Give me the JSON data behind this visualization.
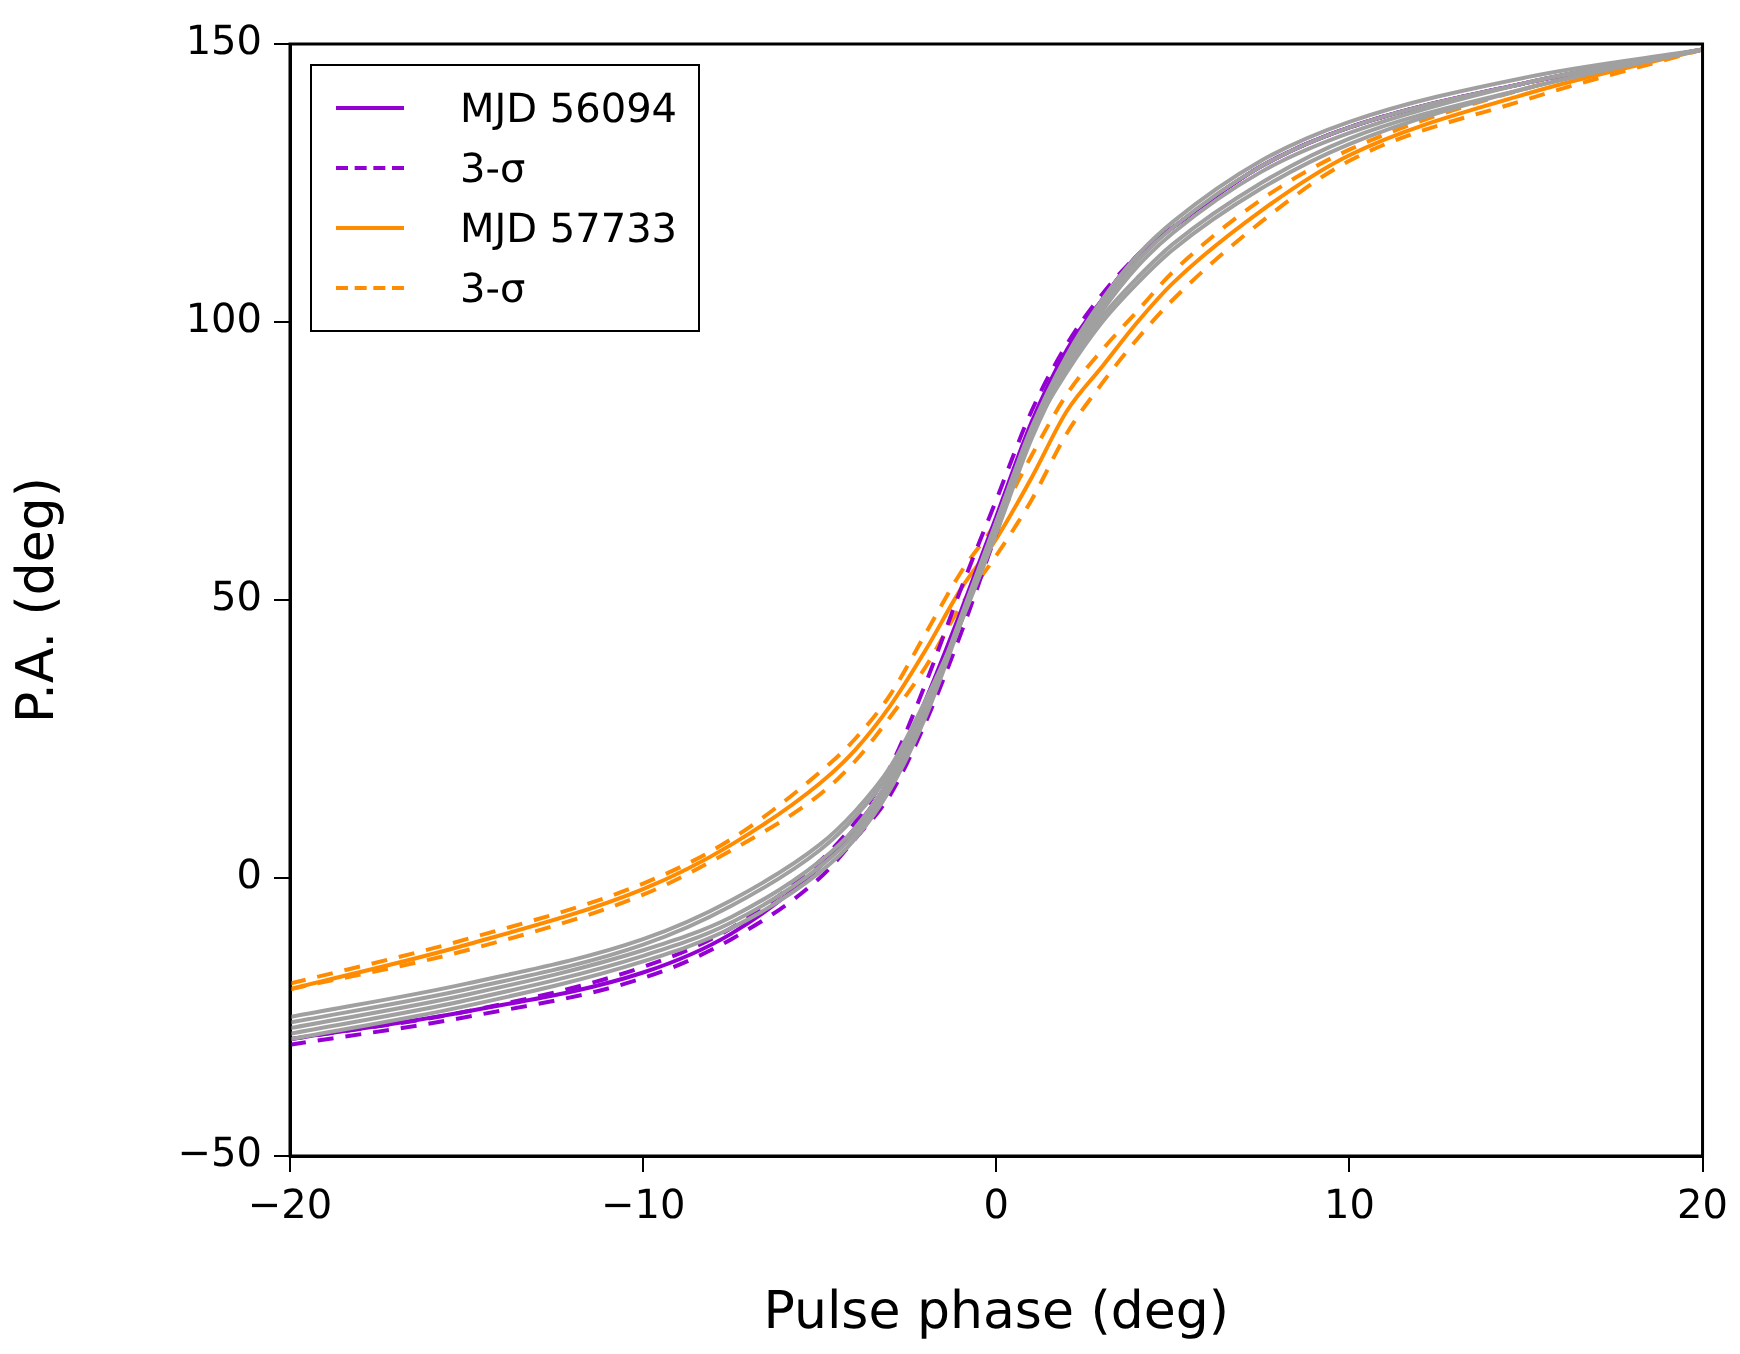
{
  "chart_data": {
    "type": "line",
    "xlabel": "Pulse phase (deg)",
    "ylabel": "P.A. (deg)",
    "x": [
      -20,
      -15,
      -10,
      -7.5,
      -5,
      -4,
      -3,
      -2,
      -1,
      0,
      1,
      2,
      3,
      4,
      5,
      7.5,
      10,
      15,
      20
    ],
    "xlim": [
      -20,
      20
    ],
    "xticks": [
      {
        "value": -20,
        "label": "−20"
      },
      {
        "value": -10,
        "label": "−10"
      },
      0,
      10,
      20
    ],
    "ylim": [
      -50,
      150
    ],
    "yticks": [
      {
        "value": -50,
        "label": "−50"
      },
      0,
      50,
      100,
      150
    ],
    "grid": false,
    "legend": "top left",
    "marker": "none",
    "series": [
      {
        "color": "#a0a0a0",
        "line_style": "solid",
        "values": [
          -25,
          -19,
          -11,
          -4,
          6,
          12,
          20,
          32,
          46,
          62,
          79,
          92,
          102,
          110,
          116,
          127,
          134,
          143,
          149
        ]
      },
      {
        "color": "#a0a0a0",
        "line_style": "solid",
        "values": [
          -26,
          -20,
          -12,
          -5,
          5,
          11,
          19,
          31,
          46,
          63,
          80,
          93,
          103,
          111,
          117,
          128,
          135,
          143,
          149
        ]
      },
      {
        "color": "#a0a0a0",
        "line_style": "solid",
        "values": [
          -27,
          -21,
          -13,
          -7,
          3,
          9,
          18,
          30,
          46,
          63,
          80,
          92,
          101,
          108,
          114,
          125,
          133,
          142,
          149
        ]
      },
      {
        "color": "#a0a0a0",
        "line_style": "solid",
        "values": [
          -28,
          -22,
          -14,
          -8,
          2,
          8,
          17,
          30,
          47,
          64,
          80,
          91,
          100,
          107,
          113,
          124,
          132,
          142,
          149
        ]
      },
      {
        "color": "#a0a0a0",
        "line_style": "solid",
        "values": [
          -29,
          -23,
          -15,
          -9,
          1,
          7,
          16,
          29,
          46,
          64,
          81,
          94,
          104,
          112,
          118,
          129,
          136,
          144,
          149
        ]
      },
      {
        "name": "MJD 56094",
        "color": "#9400d3",
        "line_style": "solid",
        "values": [
          -29,
          -24,
          -17,
          -10,
          2,
          9,
          18,
          32,
          48,
          65,
          82,
          95,
          104,
          112,
          117,
          128,
          135,
          143,
          149
        ]
      },
      {
        "name": "3-σ",
        "color": "#9400d3",
        "line_style": "dashed",
        "values": [
          -30,
          -25,
          -18,
          -11,
          0,
          7,
          15,
          28,
          44,
          62,
          80,
          94,
          104,
          112,
          117,
          128,
          135,
          143,
          149
        ]
      },
      {
        "color": "#9400d3",
        "line_style": "dashed",
        "values": [
          -29,
          -24,
          -16,
          -9,
          3,
          10,
          20,
          35,
          52,
          68,
          84,
          96,
          105,
          112,
          117,
          128,
          135,
          143,
          149
        ]
      },
      {
        "name": "MJD 57733",
        "color": "#ff8c00",
        "line_style": "solid",
        "values": [
          -20,
          -12,
          -2,
          6,
          17,
          23,
          31,
          41,
          52,
          61,
          72,
          84,
          92,
          100,
          107,
          120,
          130,
          141,
          149
        ]
      },
      {
        "name": "3-σ",
        "color": "#ff8c00",
        "line_style": "dashed",
        "values": [
          -20,
          -13,
          -3,
          5,
          15,
          21,
          29,
          38,
          49,
          58,
          68,
          80,
          89,
          97,
          104,
          118,
          129,
          140,
          149
        ]
      },
      {
        "color": "#ff8c00",
        "line_style": "dashed",
        "values": [
          -19,
          -11,
          -1,
          7,
          19,
          25,
          33,
          44,
          55,
          64,
          76,
          87,
          95,
          102,
          109,
          122,
          131,
          142,
          149
        ]
      }
    ]
  }
}
